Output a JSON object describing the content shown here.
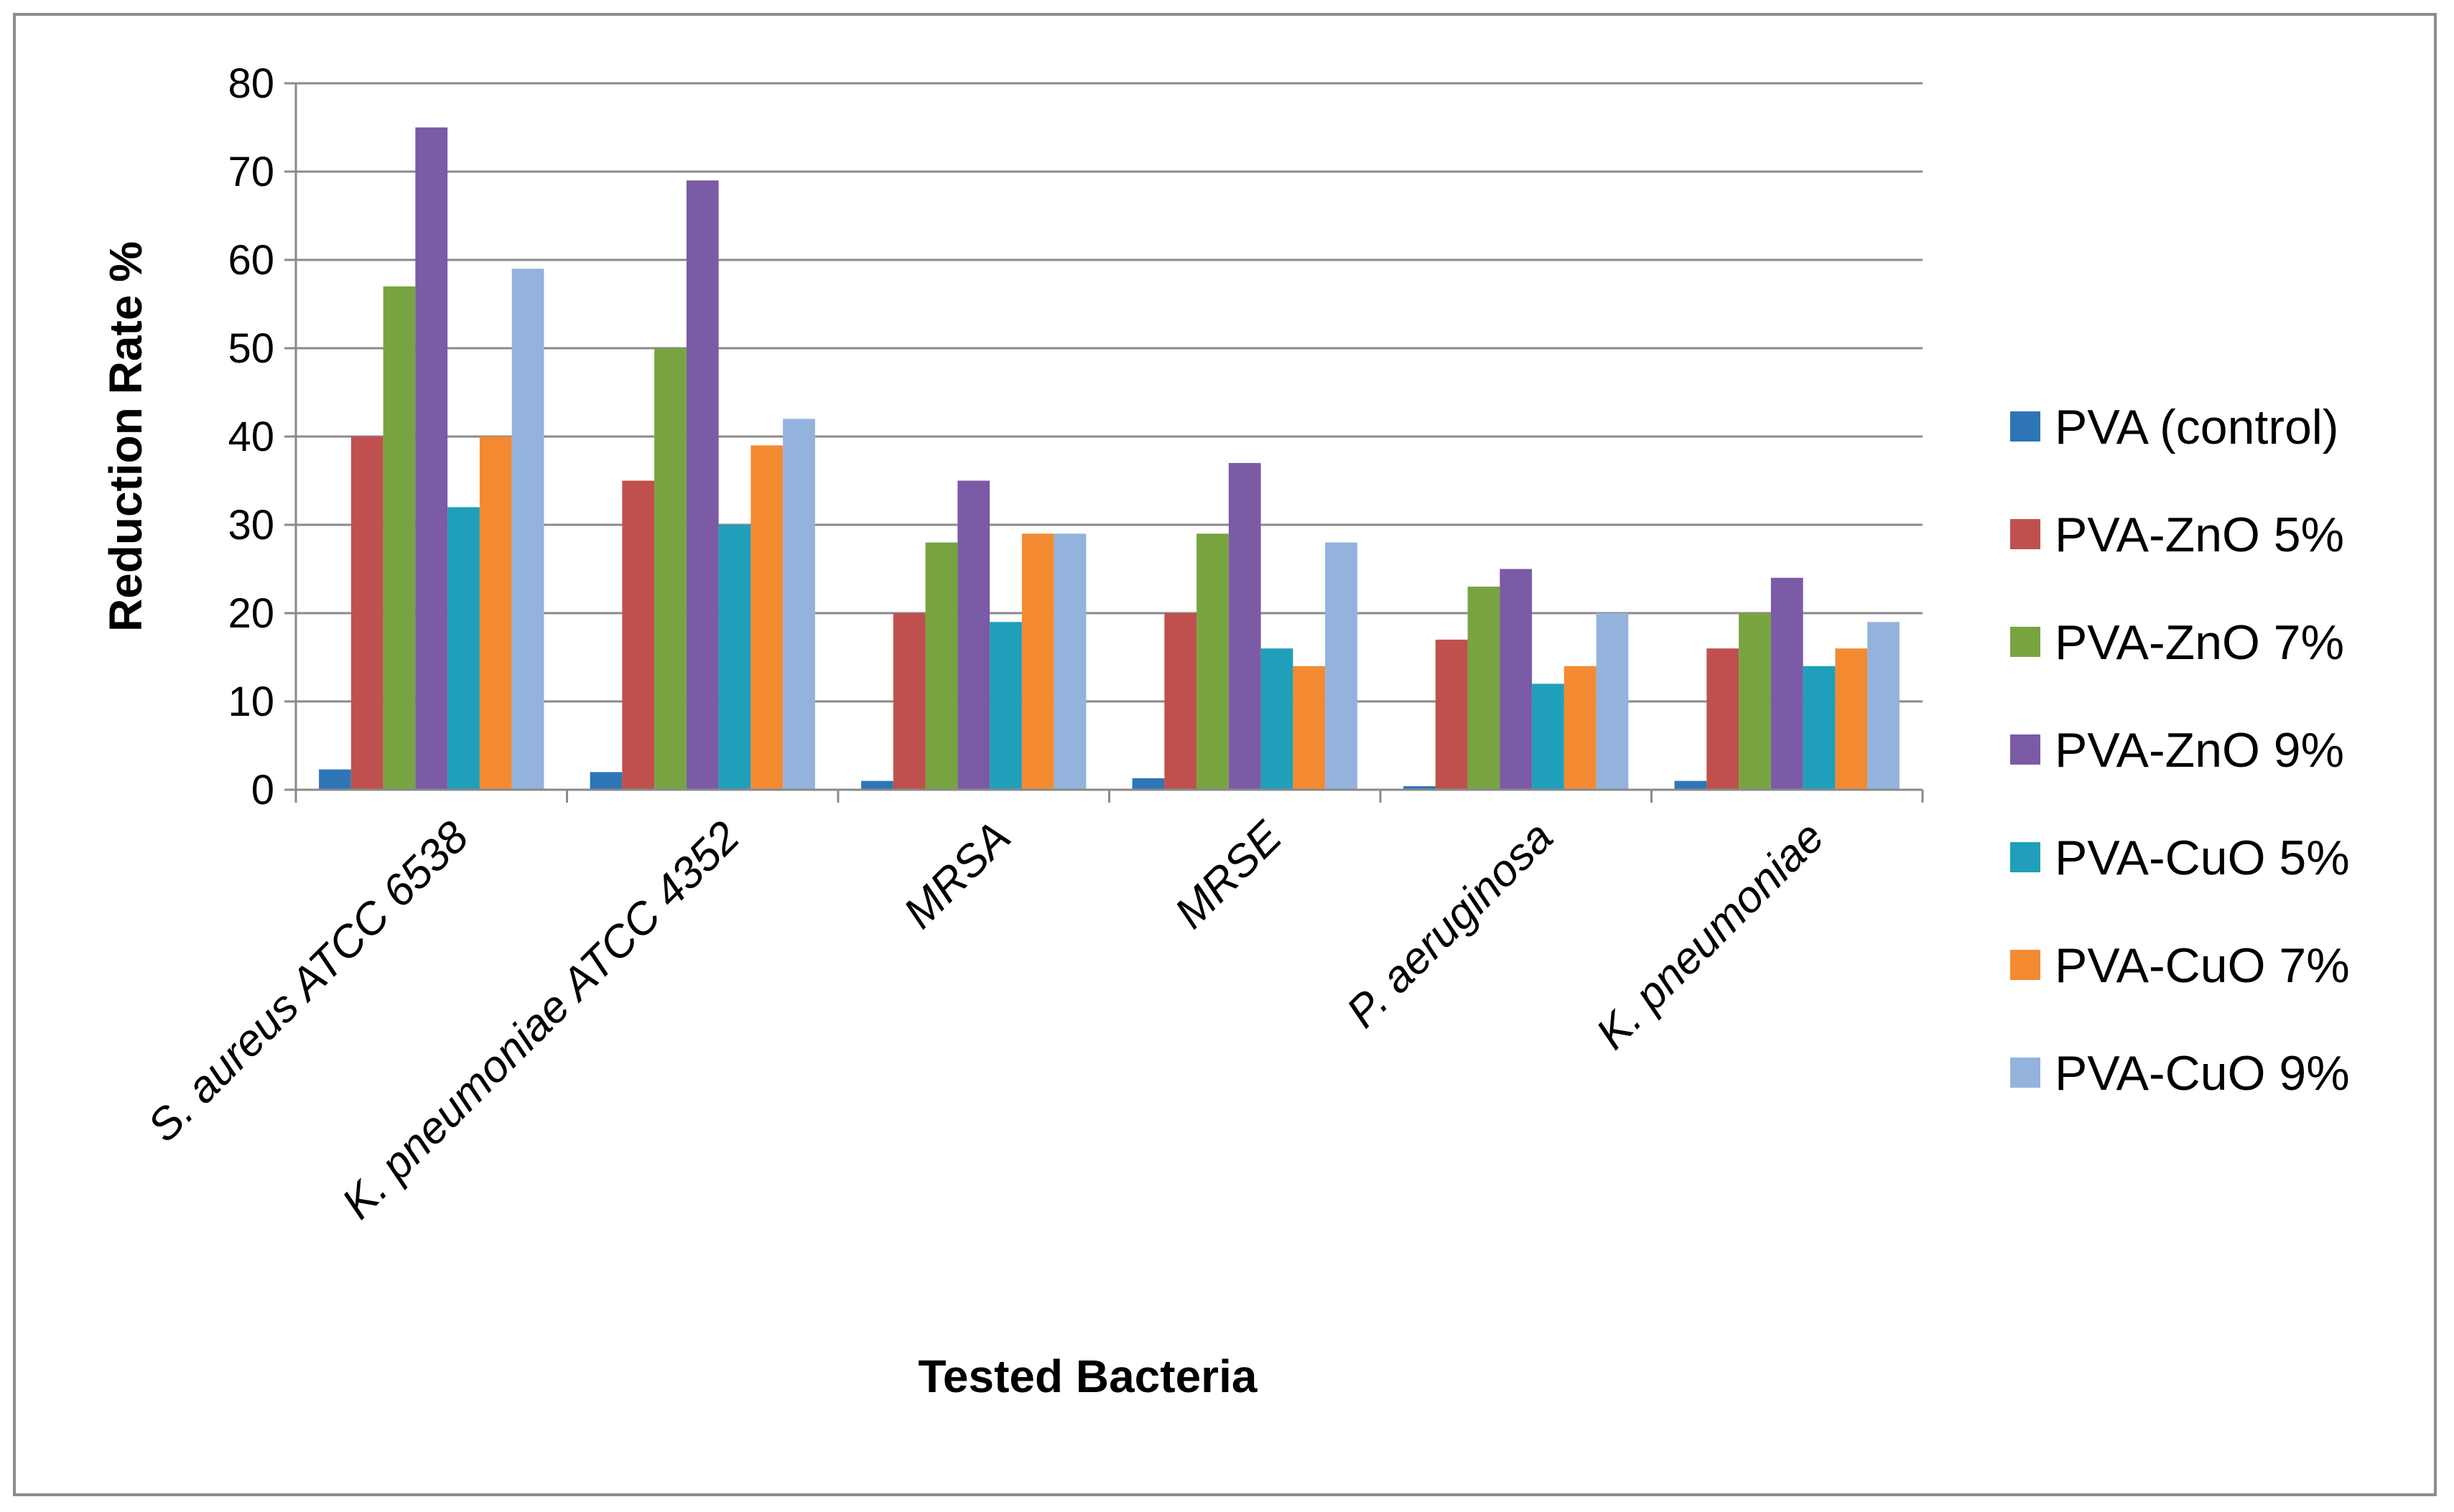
{
  "chart_data": {
    "type": "bar",
    "title": "",
    "xlabel": "Tested Bacteria",
    "ylabel": "Reduction Rate %",
    "ylim": [
      0,
      80
    ],
    "yticks": [
      0,
      10,
      20,
      30,
      40,
      50,
      60,
      70,
      80
    ],
    "grid": true,
    "legend_position": "right",
    "categories": [
      "S. aureus ATCC 6538",
      "K. pneumoniae ATCC 4352",
      "MRSA",
      "MRSE",
      "P. aeruginosa",
      "K. pneumoniae"
    ],
    "series": [
      {
        "name": "PVA (control)",
        "color": "#2e75b6",
        "values": [
          2.3,
          2,
          1,
          1.3,
          0.4,
          1
        ]
      },
      {
        "name": "PVA-ZnO 5%",
        "color": "#c0504d",
        "values": [
          40,
          35,
          20,
          20,
          17,
          16
        ]
      },
      {
        "name": "PVA-ZnO 7%",
        "color": "#77a440",
        "values": [
          57,
          50,
          28,
          29,
          23,
          20
        ]
      },
      {
        "name": "PVA-ZnO 9%",
        "color": "#7b5aa6",
        "values": [
          75,
          69,
          35,
          37,
          25,
          24
        ]
      },
      {
        "name": "PVA-CuO 5%",
        "color": "#1f9fba",
        "values": [
          32,
          30,
          19,
          16,
          12,
          14
        ]
      },
      {
        "name": "PVA-CuO 7%",
        "color": "#f38a32",
        "values": [
          40,
          39,
          29,
          14,
          14,
          16
        ]
      },
      {
        "name": "PVA-CuO 9%",
        "color": "#93b3dd",
        "values": [
          59,
          42,
          29,
          28,
          20,
          19
        ]
      }
    ]
  }
}
